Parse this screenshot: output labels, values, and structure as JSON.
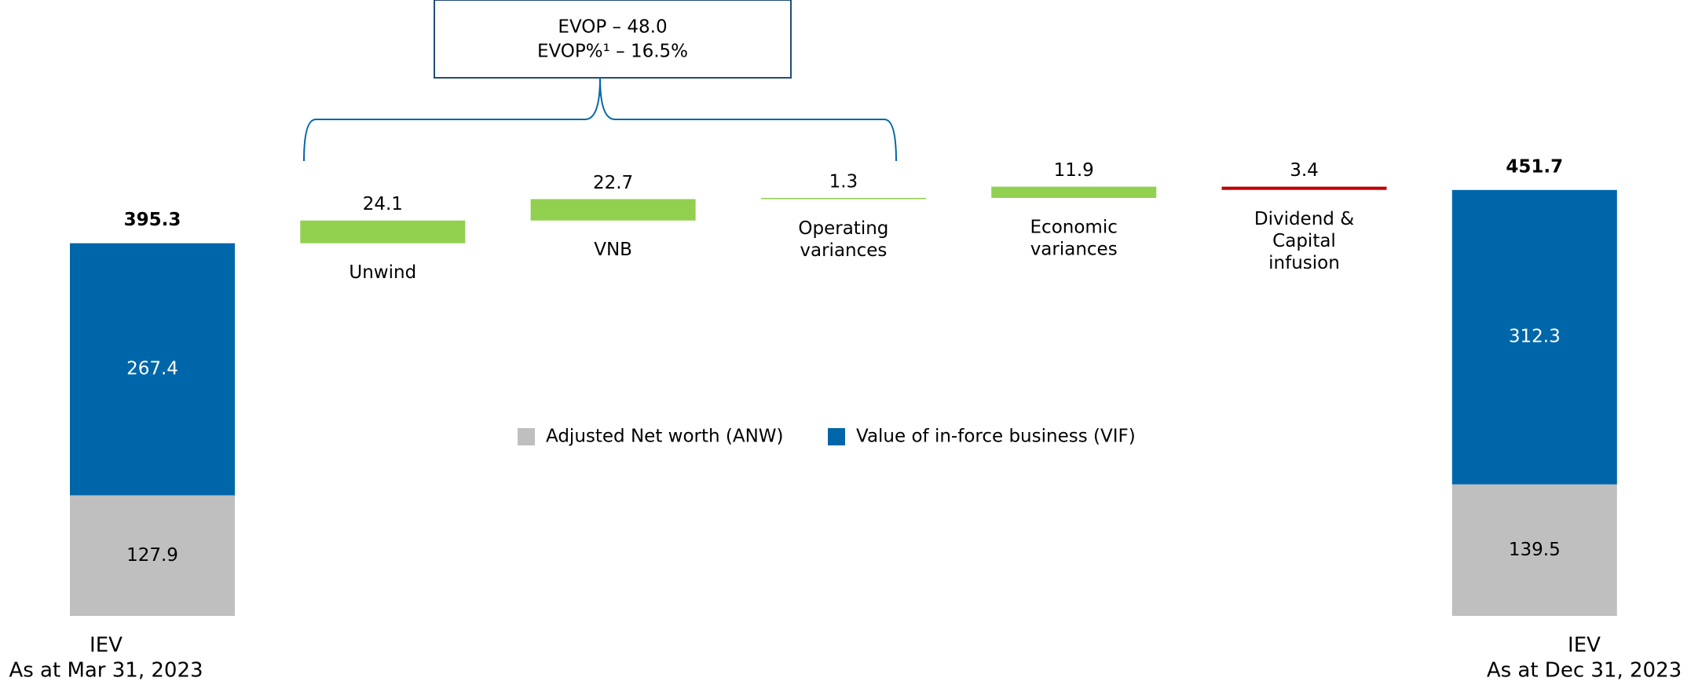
{
  "chart_data": {
    "type": "waterfall",
    "categories": [
      [
        "IEV",
        "As at Mar 31, 2023"
      ],
      [
        "Unwind"
      ],
      [
        "VNB"
      ],
      [
        "Operating",
        "variances"
      ],
      [
        "Economic",
        "variances"
      ],
      [
        "Dividend &",
        "Capital",
        "infusion"
      ],
      [
        "IEV",
        "As at Dec 31, 2023"
      ]
    ],
    "series": [
      {
        "name": "Adjusted Net worth (ANW)",
        "color": "#bfbfbf",
        "values": [
          127.9,
          null,
          null,
          null,
          null,
          null,
          139.5
        ]
      },
      {
        "name": "Value of in-force business (VIF)",
        "color": "#0066aa",
        "values": [
          267.4,
          null,
          null,
          null,
          null,
          null,
          312.3
        ]
      }
    ],
    "totals": [
      395.3,
      null,
      null,
      null,
      null,
      null,
      451.7
    ],
    "changes": {
      "values": [
        null,
        24.1,
        22.7,
        1.3,
        11.9,
        -3.4,
        null
      ],
      "value_labels": [
        null,
        null,
        null,
        null,
        null,
        "3.4",
        null
      ],
      "colors": [
        null,
        "#92d050",
        "#92d050",
        "#92d050",
        "#92d050",
        "#c00000",
        null
      ]
    },
    "annotation": [
      "EVOP – 48.0",
      "EVOP%¹ – 16.5%"
    ],
    "ylim": [
      0,
      650
    ]
  }
}
